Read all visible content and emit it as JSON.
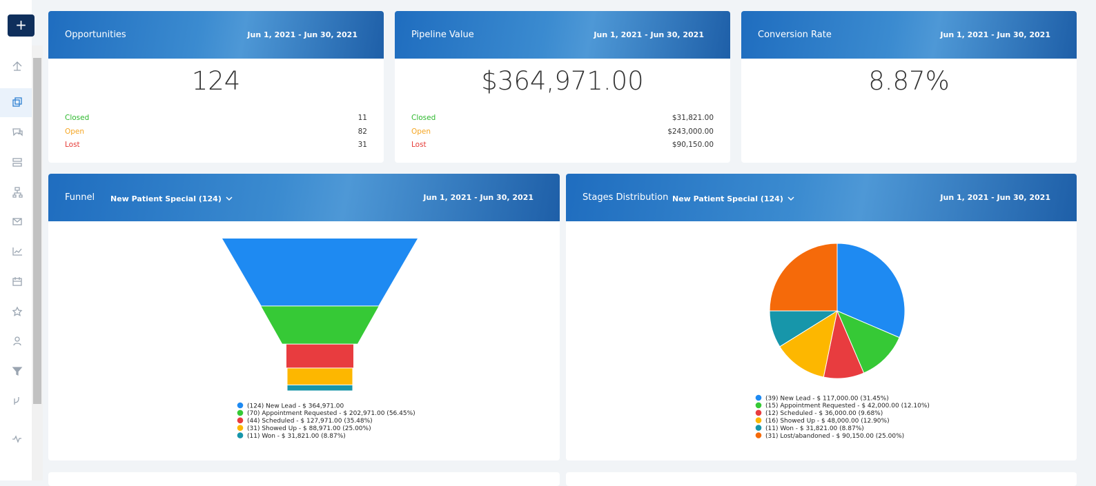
{
  "sidebar": {
    "add_button": "+"
  },
  "cards": [
    {
      "title": "Opportunities",
      "date_range": "Jun 1, 2021 - Jun 30, 2021",
      "value": "124",
      "rows": [
        {
          "label": "Closed",
          "value": "11"
        },
        {
          "label": "Open",
          "value": "82"
        },
        {
          "label": "Lost",
          "value": "31"
        }
      ]
    },
    {
      "title": "Pipeline Value",
      "date_range": "Jun 1, 2021 - Jun 30, 2021",
      "value": "$364,971.00",
      "rows": [
        {
          "label": "Closed",
          "value": "$31,821.00"
        },
        {
          "label": "Open",
          "value": "$243,000.00"
        },
        {
          "label": "Lost",
          "value": "$90,150.00"
        }
      ]
    },
    {
      "title": "Conversion Rate",
      "date_range": "Jun 1, 2021 - Jun 30, 2021",
      "value": "8.87%",
      "rows": []
    }
  ],
  "panels": [
    {
      "title": "Funnel",
      "filter": "New Patient Special (124)",
      "date_range": "Jun 1, 2021 - Jun 30, 2021",
      "chart": {
        "type": "funnel",
        "categories": [
          "(124) New Lead - $ 364,971.00",
          "(70) Appointment Requested - $ 202,971.00 (56.45%)",
          "(44) Scheduled - $ 127,971.00 (35.48%)",
          "(31) Showed Up - $ 88,971.00 (25.00%)",
          "(11) Won - $ 31,821.00 (8.87%)"
        ],
        "values": [
          124,
          70,
          44,
          31,
          11
        ],
        "colors": [
          "#1e8af2",
          "#36c936",
          "#e83c3f",
          "#fdb700",
          "#1796aa"
        ]
      }
    },
    {
      "title": "Stages Distribution",
      "filter": "New Patient Special (124)",
      "date_range": "Jun 1, 2021 - Jun 30, 2021",
      "chart": {
        "type": "pie",
        "categories": [
          "(39) New Lead - $ 117,000.00 (31.45%)",
          "(15) Appointment Requested - $ 42,000.00 (12.10%)",
          "(12) Scheduled - $ 36,000.00 (9.68%)",
          "(16) Showed Up - $ 48,000.00 (12.90%)",
          "(11) Won - $ 31,821.00 (8.87%)",
          "(31) Lost/abandoned - $ 90,150.00 (25.00%)"
        ],
        "values": [
          31.45,
          12.1,
          9.68,
          12.9,
          8.87,
          25.0
        ],
        "colors": [
          "#1e8af2",
          "#36c936",
          "#e83c3f",
          "#fdb700",
          "#1796aa",
          "#f56a0a"
        ]
      }
    }
  ]
}
